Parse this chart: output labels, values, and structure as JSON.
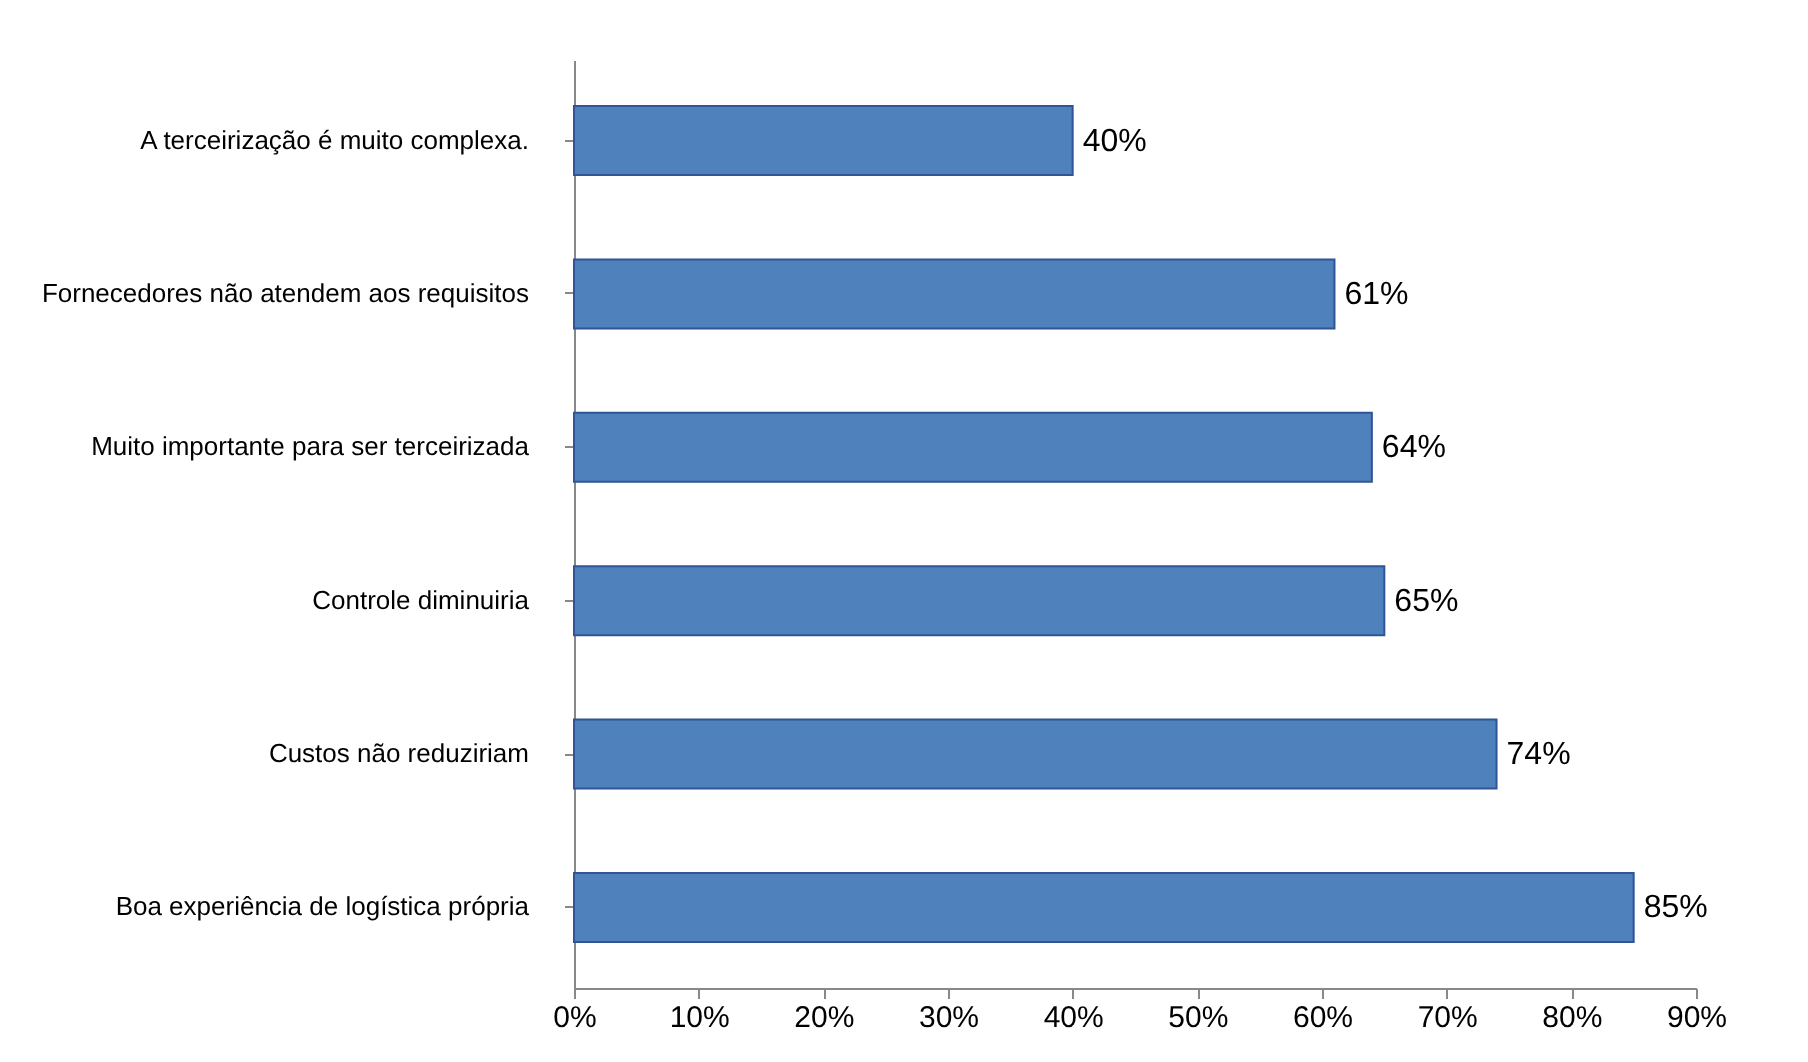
{
  "chart_data": {
    "type": "bar",
    "orientation": "horizontal",
    "categories": [
      "A terceirização é muito complexa.",
      "Fornecedores não atendem aos requisitos",
      "Muito importante para ser terceirizada",
      "Controle diminuiria",
      "Custos não reduziriam",
      "Boa experiência de logística própria"
    ],
    "values": [
      40,
      61,
      64,
      65,
      74,
      85
    ],
    "value_labels": [
      "40%",
      "61%",
      "64%",
      "65%",
      "74%",
      "85%"
    ],
    "color": "#4f81bd",
    "xlim": [
      0,
      90
    ],
    "xticks": [
      {
        "value": 0,
        "label": "0%"
      },
      {
        "value": 10,
        "label": "10%"
      },
      {
        "value": 20,
        "label": "20%"
      },
      {
        "value": 30,
        "label": "30%"
      },
      {
        "value": 40,
        "label": "40%"
      },
      {
        "value": 50,
        "label": "50%"
      },
      {
        "value": 60,
        "label": "60%"
      },
      {
        "value": 70,
        "label": "70%"
      },
      {
        "value": 80,
        "label": "80%"
      },
      {
        "value": 90,
        "label": "90%"
      }
    ],
    "grid": false
  }
}
